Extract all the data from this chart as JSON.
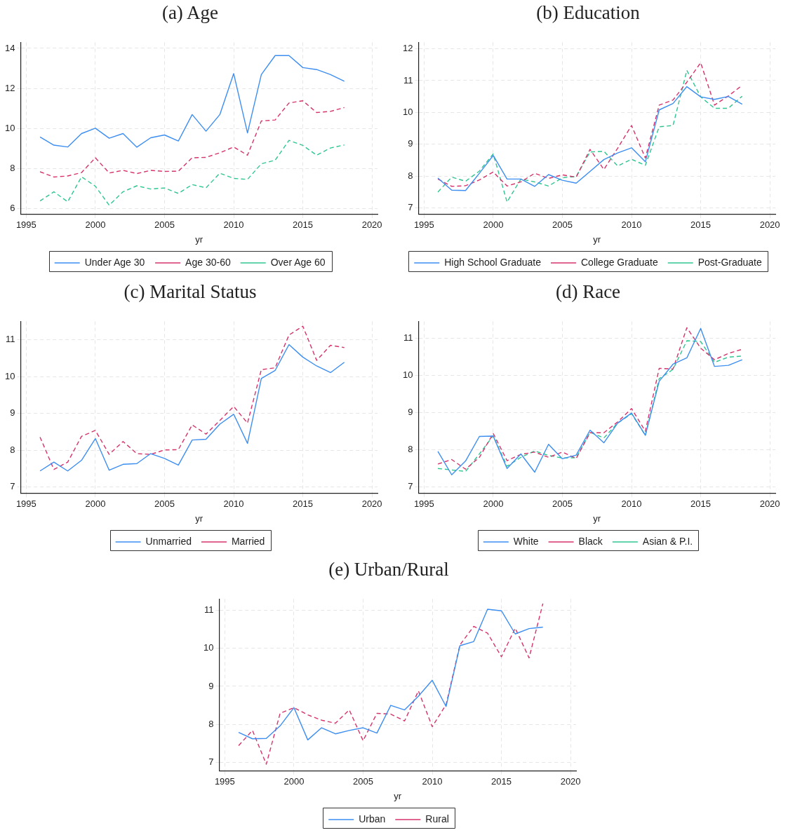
{
  "chart_data": [
    {
      "type": "line",
      "title": "(a) Age",
      "xlabel": "yr",
      "x": [
        1996,
        1997,
        1998,
        1999,
        2000,
        2001,
        2002,
        2003,
        2004,
        2005,
        2006,
        2007,
        2008,
        2009,
        2010,
        2011,
        2012,
        2013,
        2014,
        2015,
        2016,
        2017,
        2018
      ],
      "xlim": [
        1994.6,
        2020.4
      ],
      "xticks": [
        1995,
        2000,
        2005,
        2010,
        2015,
        2020
      ],
      "ylim": [
        5.7,
        14.3
      ],
      "yticks": [
        6,
        8,
        10,
        12,
        14
      ],
      "grid": true,
      "legend": "bottom",
      "series": [
        {
          "name": "Under Age 30",
          "color": "#3d8ef2",
          "line_style": "solid",
          "values": [
            9.57,
            9.16,
            9.07,
            9.74,
            10.01,
            9.51,
            9.74,
            9.06,
            9.53,
            9.67,
            9.37,
            10.69,
            9.86,
            10.69,
            12.74,
            9.77,
            12.69,
            13.64,
            13.64,
            13.04,
            12.94,
            12.69,
            12.36
          ]
        },
        {
          "name": "Age 30-60",
          "color": "#d6336c",
          "line_style": "dashed",
          "values": [
            7.83,
            7.57,
            7.62,
            7.79,
            8.53,
            7.77,
            7.9,
            7.74,
            7.9,
            7.85,
            7.86,
            8.53,
            8.55,
            8.78,
            9.07,
            8.66,
            10.37,
            10.42,
            11.27,
            11.38,
            10.79,
            10.85,
            11.04
          ]
        },
        {
          "name": "Over Age 60",
          "color": "#2fc68f",
          "line_style": "dashed",
          "values": [
            6.37,
            6.83,
            6.33,
            7.58,
            7.11,
            6.16,
            6.83,
            7.13,
            6.97,
            7.02,
            6.75,
            7.19,
            7.03,
            7.76,
            7.5,
            7.45,
            8.23,
            8.41,
            9.4,
            9.15,
            8.66,
            9.02,
            9.17
          ]
        }
      ]
    },
    {
      "type": "line",
      "title": "(b) Education",
      "xlabel": "yr",
      "x": [
        1996,
        1997,
        1998,
        1999,
        2000,
        2001,
        2002,
        2003,
        2004,
        2005,
        2006,
        2007,
        2008,
        2009,
        2010,
        2011,
        2012,
        2013,
        2014,
        2015,
        2016,
        2017,
        2018
      ],
      "xlim": [
        1994.6,
        2020.4
      ],
      "xticks": [
        1995,
        2000,
        2005,
        2010,
        2015,
        2020
      ],
      "ylim": [
        6.8,
        12.2
      ],
      "yticks": [
        7,
        8,
        9,
        10,
        11,
        12
      ],
      "grid": true,
      "legend": "bottom",
      "series": [
        {
          "name": "High School Graduate",
          "color": "#3d8ef2",
          "line_style": "solid",
          "values": [
            7.94,
            7.56,
            7.55,
            8.09,
            8.65,
            7.91,
            7.91,
            7.68,
            8.05,
            7.87,
            7.78,
            8.15,
            8.52,
            8.73,
            8.89,
            8.45,
            10.08,
            10.28,
            10.81,
            10.49,
            10.41,
            10.5,
            10.26
          ]
        },
        {
          "name": "College Graduate",
          "color": "#d6336c",
          "line_style": "dashed",
          "values": [
            7.91,
            7.68,
            7.7,
            7.88,
            8.13,
            7.69,
            7.82,
            8.09,
            7.93,
            8.04,
            7.97,
            8.84,
            8.21,
            8.88,
            9.59,
            8.57,
            10.23,
            10.39,
            10.95,
            11.56,
            10.23,
            10.52,
            10.85
          ]
        },
        {
          "name": "Post-Graduate",
          "color": "#2fc68f",
          "line_style": "dashed",
          "values": [
            7.5,
            7.97,
            7.84,
            8.16,
            8.7,
            7.19,
            7.91,
            7.82,
            7.69,
            7.95,
            7.99,
            8.76,
            8.78,
            8.32,
            8.53,
            8.34,
            9.55,
            9.59,
            11.32,
            10.49,
            10.13,
            10.13,
            10.51
          ]
        }
      ]
    },
    {
      "type": "line",
      "title": "(c) Marital Status",
      "xlabel": "yr",
      "x": [
        1996,
        1997,
        1998,
        1999,
        2000,
        2001,
        2002,
        2003,
        2004,
        2005,
        2006,
        2007,
        2008,
        2009,
        2010,
        2011,
        2012,
        2013,
        2014,
        2015,
        2016,
        2017,
        2018
      ],
      "xlim": [
        1994.6,
        2020.4
      ],
      "xticks": [
        1995,
        2000,
        2005,
        2010,
        2015,
        2020
      ],
      "ylim": [
        6.83,
        11.5
      ],
      "yticks": [
        7,
        8,
        9,
        10,
        11
      ],
      "grid": true,
      "legend": "bottom",
      "series": [
        {
          "name": "Unmarried",
          "color": "#3d8ef2",
          "line_style": "solid",
          "values": [
            7.44,
            7.68,
            7.44,
            7.73,
            8.32,
            7.46,
            7.62,
            7.64,
            7.91,
            7.78,
            7.6,
            8.28,
            8.3,
            8.71,
            8.98,
            8.19,
            9.95,
            10.17,
            10.87,
            10.53,
            10.29,
            10.11,
            10.39
          ]
        },
        {
          "name": "Married",
          "color": "#d6336c",
          "line_style": "dashed",
          "values": [
            8.36,
            7.48,
            7.68,
            8.38,
            8.54,
            7.89,
            8.24,
            7.91,
            7.89,
            8.01,
            8.02,
            8.69,
            8.44,
            8.81,
            9.19,
            8.74,
            10.19,
            10.24,
            11.13,
            11.37,
            10.44,
            10.85,
            10.79
          ]
        }
      ]
    },
    {
      "type": "line",
      "title": "(d) Race",
      "xlabel": "yr",
      "x": [
        1996,
        1997,
        1998,
        1999,
        2000,
        2001,
        2002,
        2003,
        2004,
        2005,
        2006,
        2007,
        2008,
        2009,
        2010,
        2011,
        2012,
        2013,
        2014,
        2015,
        2016,
        2017,
        2018
      ],
      "xlim": [
        1994.6,
        2020.4
      ],
      "xticks": [
        1995,
        2000,
        2005,
        2010,
        2015,
        2020
      ],
      "ylim": [
        6.83,
        11.45
      ],
      "yticks": [
        7,
        8,
        9,
        10,
        11
      ],
      "grid": true,
      "legend": "bottom",
      "series": [
        {
          "name": "White",
          "color": "#3d8ef2",
          "line_style": "solid",
          "values": [
            7.96,
            7.33,
            7.7,
            8.36,
            8.37,
            7.5,
            7.89,
            7.4,
            8.15,
            7.76,
            7.86,
            8.53,
            8.19,
            8.72,
            8.99,
            8.39,
            9.84,
            10.3,
            10.47,
            11.26,
            10.24,
            10.27,
            10.42
          ]
        },
        {
          "name": "Black",
          "color": "#d6336c",
          "line_style": "dashed",
          "values": [
            7.62,
            7.74,
            7.48,
            7.8,
            8.44,
            7.71,
            7.88,
            7.94,
            7.8,
            7.94,
            7.77,
            8.46,
            8.46,
            8.75,
            9.11,
            8.5,
            10.19,
            10.17,
            11.28,
            10.73,
            10.42,
            10.59,
            10.7
          ]
        },
        {
          "name": "Asian & P.I.",
          "color": "#2fc68f",
          "line_style": "dashed",
          "values": [
            7.5,
            7.46,
            7.42,
            7.89,
            8.38,
            7.56,
            7.8,
            7.97,
            7.85,
            7.78,
            7.79,
            8.47,
            8.32,
            8.72,
            8.97,
            8.39,
            9.91,
            10.16,
            10.93,
            10.91,
            10.35,
            10.49,
            10.52
          ]
        }
      ]
    },
    {
      "type": "line",
      "title": "(e) Urban/Rural",
      "xlabel": "yr",
      "x": [
        1996,
        1997,
        1998,
        1999,
        2000,
        2001,
        2002,
        2003,
        2004,
        2005,
        2006,
        2007,
        2008,
        2009,
        2010,
        2011,
        2012,
        2013,
        2014,
        2015,
        2016,
        2017,
        2018
      ],
      "xlim": [
        1994.6,
        2020.4
      ],
      "xticks": [
        1995,
        2000,
        2005,
        2010,
        2015,
        2020
      ],
      "ylim": [
        6.77,
        11.3
      ],
      "yticks": [
        7,
        8,
        9,
        10,
        11
      ],
      "grid": true,
      "legend": "bottom",
      "series": [
        {
          "name": "Urban",
          "color": "#3d8ef2",
          "line_style": "solid",
          "values": [
            7.79,
            7.62,
            7.63,
            7.96,
            8.44,
            7.59,
            7.91,
            7.75,
            7.84,
            7.91,
            7.77,
            8.5,
            8.38,
            8.74,
            9.16,
            8.47,
            10.07,
            10.18,
            11.03,
            10.99,
            10.38,
            10.52,
            10.56
          ]
        },
        {
          "name": "Rural",
          "color": "#d6336c",
          "line_style": "dashed",
          "values": [
            7.44,
            7.84,
            6.95,
            8.29,
            8.44,
            8.25,
            8.11,
            8.03,
            8.38,
            7.57,
            8.29,
            8.27,
            8.09,
            8.88,
            7.94,
            8.52,
            10.09,
            10.58,
            10.4,
            9.78,
            10.53,
            9.75,
            11.18
          ]
        }
      ]
    }
  ]
}
